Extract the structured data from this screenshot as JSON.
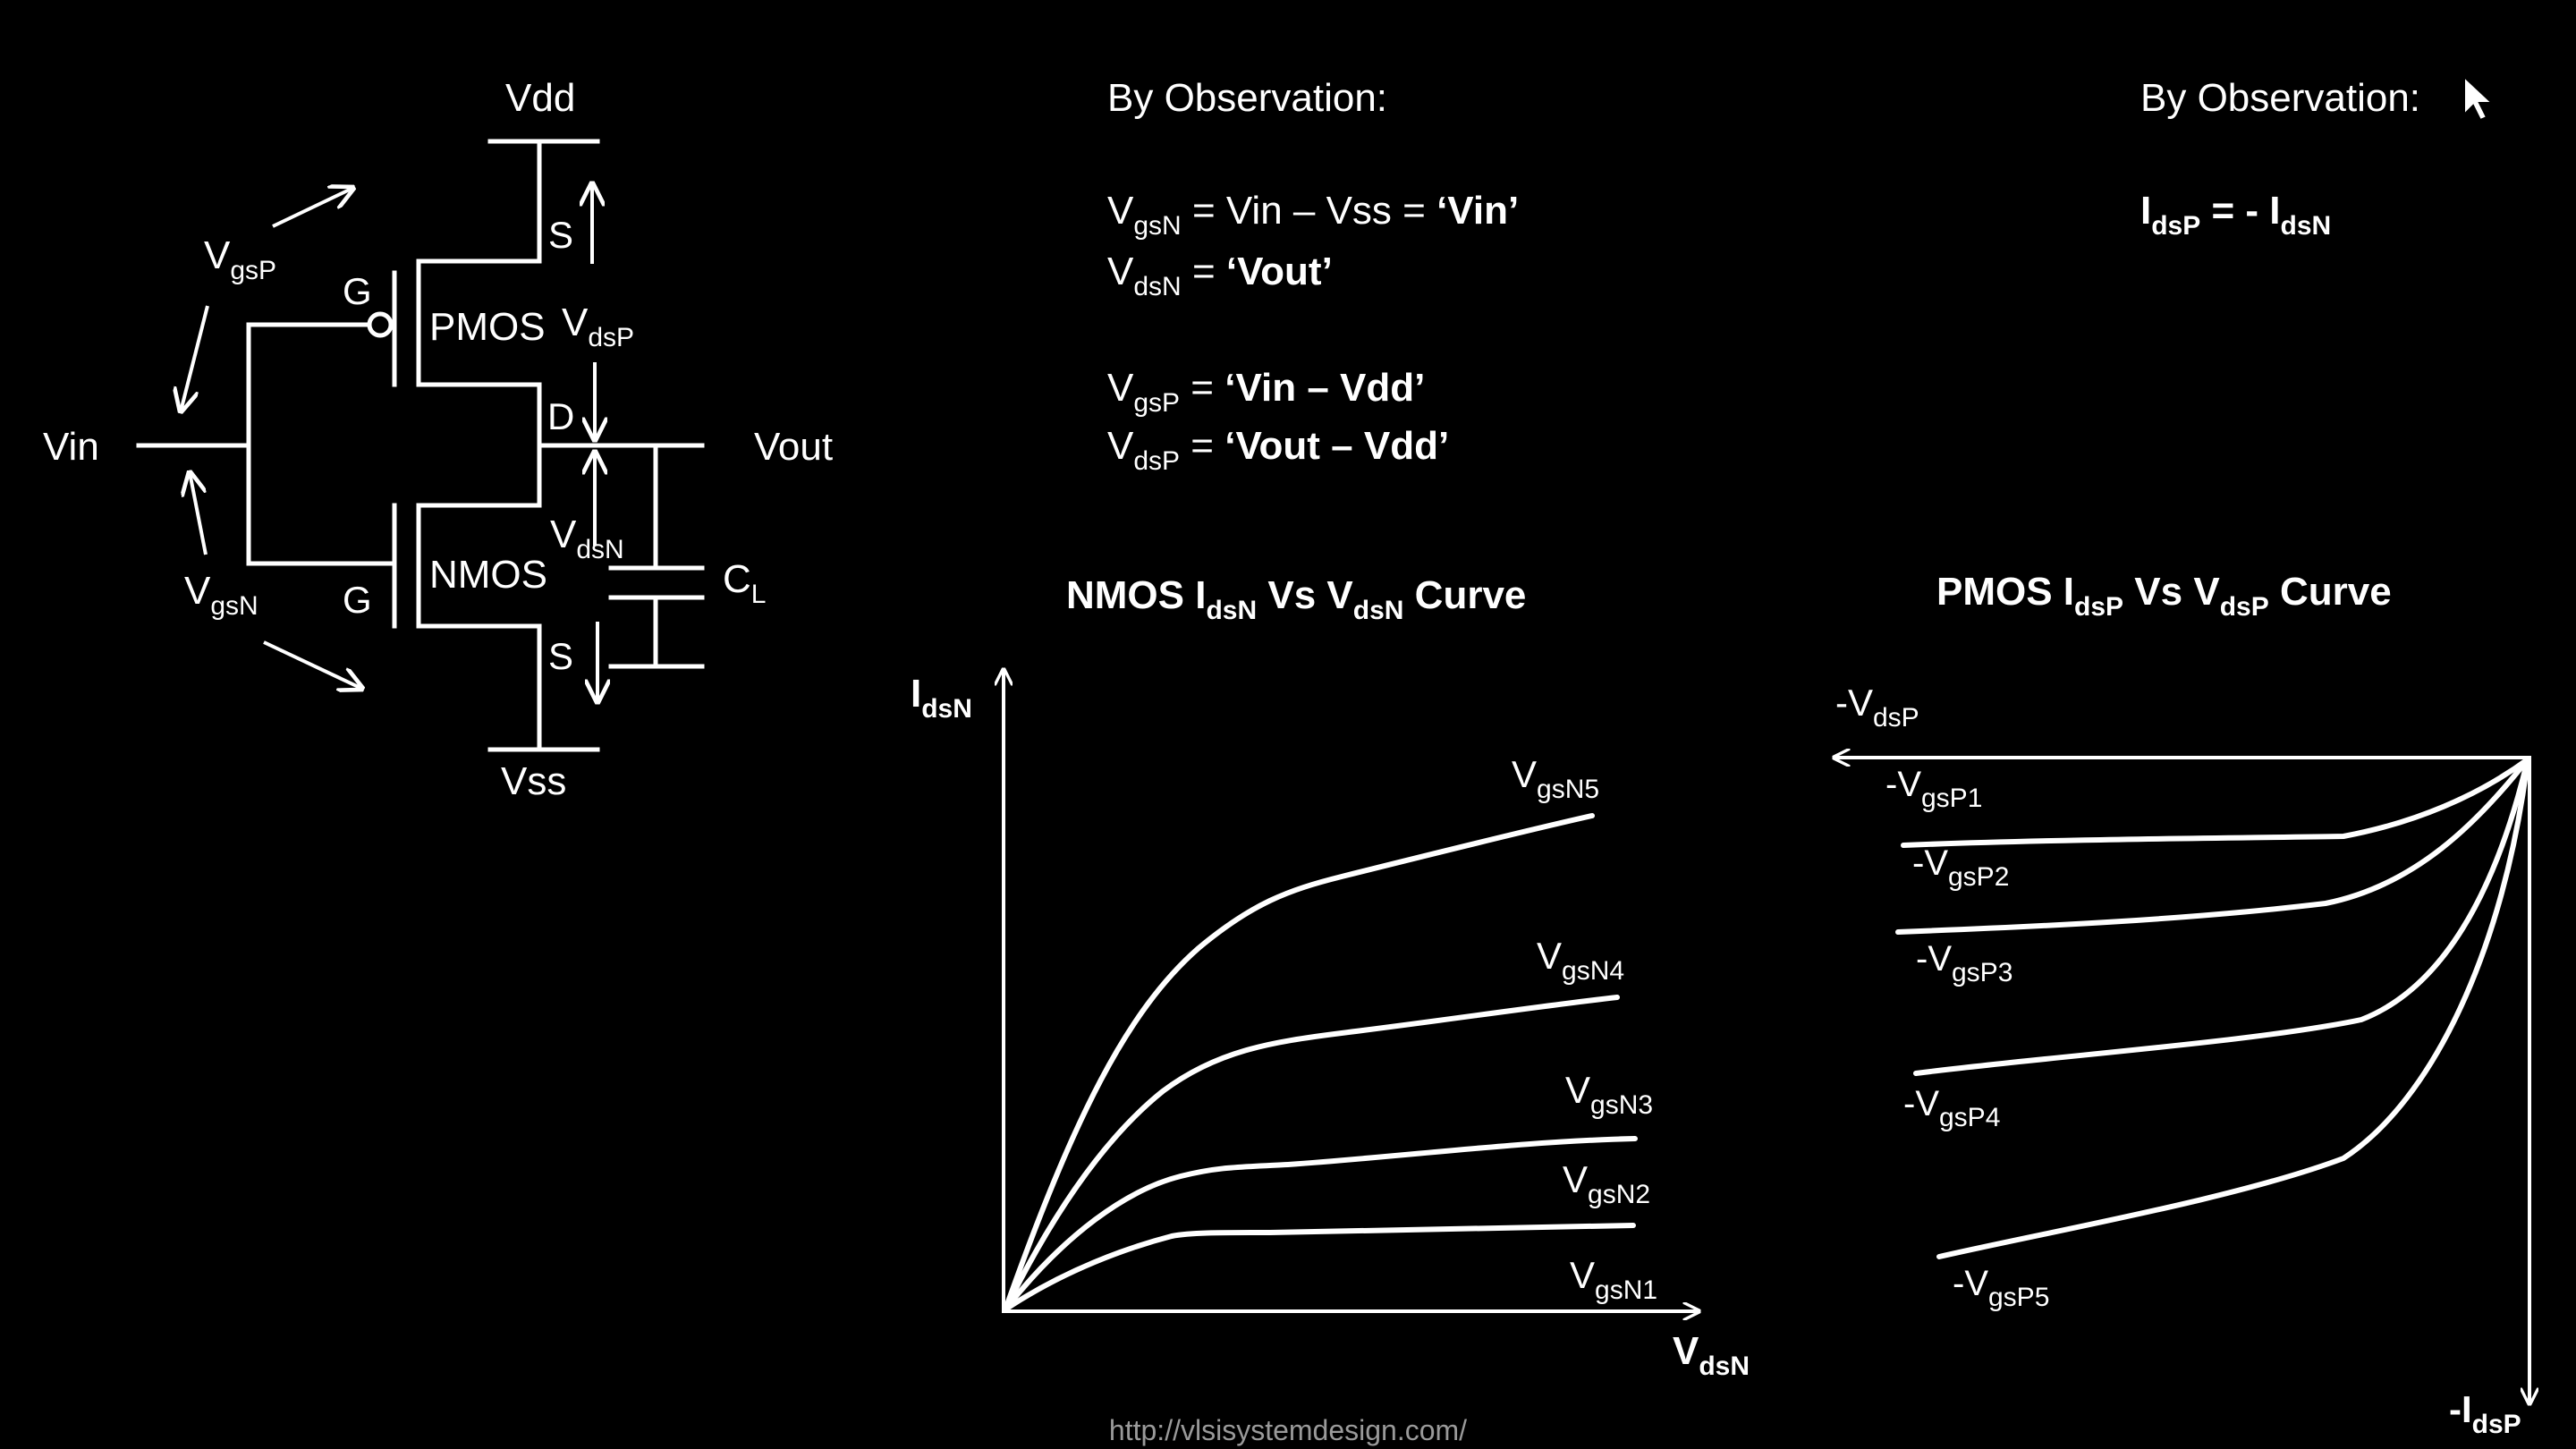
{
  "circuit": {
    "vdd": "Vdd",
    "vss": "Vss",
    "vin": "Vin",
    "vout": "Vout",
    "pmos": "PMOS",
    "nmos": "NMOS",
    "gate": "G",
    "source": "S",
    "drain": "D",
    "vgsp": {
      "main": "V",
      "sub": "gsP"
    },
    "vgsn": {
      "main": "V",
      "sub": "gsN"
    },
    "vdsp": {
      "main": "V",
      "sub": "dsP"
    },
    "vdsn": {
      "main": "V",
      "sub": "dsN"
    },
    "cl": {
      "main": "C",
      "sub": "L"
    }
  },
  "obs_left": {
    "heading": "By Observation:",
    "lines": [
      {
        "main": "V",
        "sub": "gsN",
        "rest": " = Vin – Vss = ",
        "bold": "‘Vin’"
      },
      {
        "main": "V",
        "sub": "dsN",
        "rest": " = ",
        "bold": "‘Vout’"
      },
      {
        "main": "V",
        "sub": "gsP",
        "rest": " = ",
        "bold": "‘Vin – Vdd’"
      },
      {
        "main": "V",
        "sub": "dsP",
        "rest": " = ",
        "bold": "‘Vout – Vdd’"
      }
    ]
  },
  "obs_right": {
    "heading": "By Observation:",
    "eq": {
      "a_main": "I",
      "a_sub": "dsP",
      "mid": " = - ",
      "b_main": "I",
      "b_sub": "dsN"
    }
  },
  "nmos_chart": {
    "title": {
      "a": "NMOS I",
      "a_sub": "dsN",
      "b": " Vs V",
      "b_sub": "dsN",
      "c": " Curve"
    },
    "ylabel": {
      "main": "I",
      "sub": "dsN"
    },
    "xlabel": {
      "main": "V",
      "sub": "dsN"
    },
    "curves": [
      {
        "main": "V",
        "sub": "gsN1"
      },
      {
        "main": "V",
        "sub": "gsN2"
      },
      {
        "main": "V",
        "sub": "gsN3"
      },
      {
        "main": "V",
        "sub": "gsN4"
      },
      {
        "main": "V",
        "sub": "gsN5"
      }
    ]
  },
  "pmos_chart": {
    "title": {
      "a": "PMOS I",
      "a_sub": "dsP",
      "b": " Vs V",
      "b_sub": "dsP",
      "c": " Curve"
    },
    "xlabel": {
      "main": "-V",
      "sub": "dsP"
    },
    "ylabel": {
      "main": "-I",
      "sub": "dsP"
    },
    "curves": [
      {
        "main": "-V",
        "sub": "gsP1"
      },
      {
        "main": "-V",
        "sub": "gsP2"
      },
      {
        "main": "-V",
        "sub": "gsP3"
      },
      {
        "main": "-V",
        "sub": "gsP4"
      },
      {
        "main": "-V",
        "sub": "gsP5"
      }
    ]
  },
  "footer": {
    "url": "http://vlsisystemdesign.com/"
  }
}
